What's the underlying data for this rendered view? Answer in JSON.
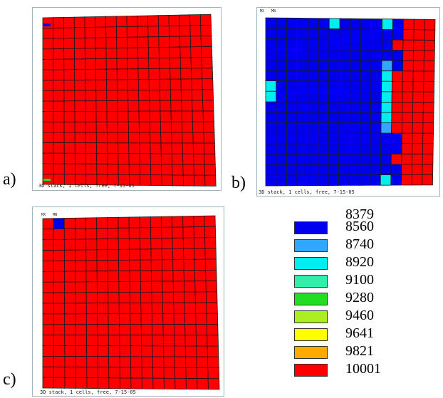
{
  "panels": [
    {
      "label": "a)",
      "caption": "3D stack, 1 cells, free, 7-15-05",
      "corner_marks": [
        "",
        ""
      ]
    },
    {
      "label": "b)",
      "caption": "3D stack, 1 cells, free, 7-15-05",
      "corner_marks": [
        "MX",
        "MN"
      ]
    },
    {
      "label": "c)",
      "caption": "3D stack, 1 cells, free, 7-15-05",
      "corner_marks": [
        "MX",
        "MN"
      ]
    }
  ],
  "legend": {
    "top_value": "8379",
    "entries": [
      {
        "value": "8560",
        "color": "#0000ee"
      },
      {
        "value": "8740",
        "color": "#33a6ff"
      },
      {
        "value": "8920",
        "color": "#00eeee"
      },
      {
        "value": "9100",
        "color": "#33eeaa"
      },
      {
        "value": "9280",
        "color": "#22dd22"
      },
      {
        "value": "9460",
        "color": "#aaee22"
      },
      {
        "value": "9641",
        "color": "#ffff00"
      },
      {
        "value": "9821",
        "color": "#ffaa00"
      },
      {
        "value": "10001",
        "color": "#ff0000"
      }
    ]
  }
}
